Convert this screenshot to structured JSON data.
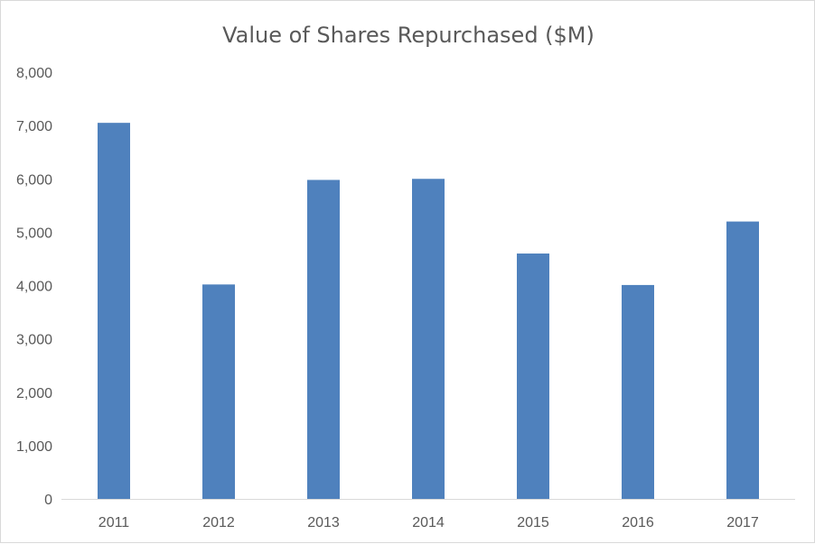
{
  "chart_data": {
    "type": "bar",
    "title": "Value of Shares Repurchased ($M)",
    "categories": [
      "2011",
      "2012",
      "2013",
      "2014",
      "2015",
      "2016",
      "2017"
    ],
    "values": [
      7050,
      4020,
      5980,
      6000,
      4600,
      4010,
      5200
    ],
    "ylim": [
      0,
      8000
    ],
    "yticks": [
      0,
      1000,
      2000,
      3000,
      4000,
      5000,
      6000,
      7000,
      8000
    ],
    "ytick_labels": [
      "0",
      "1,000",
      "2,000",
      "3,000",
      "4,000",
      "5,000",
      "6,000",
      "7,000",
      "8,000"
    ],
    "xlabel": "",
    "ylabel": "",
    "grid": false,
    "legend": "none",
    "bar_color": "#4f81bd",
    "axis_color": "#d9d9d9",
    "text_color": "#595959"
  }
}
